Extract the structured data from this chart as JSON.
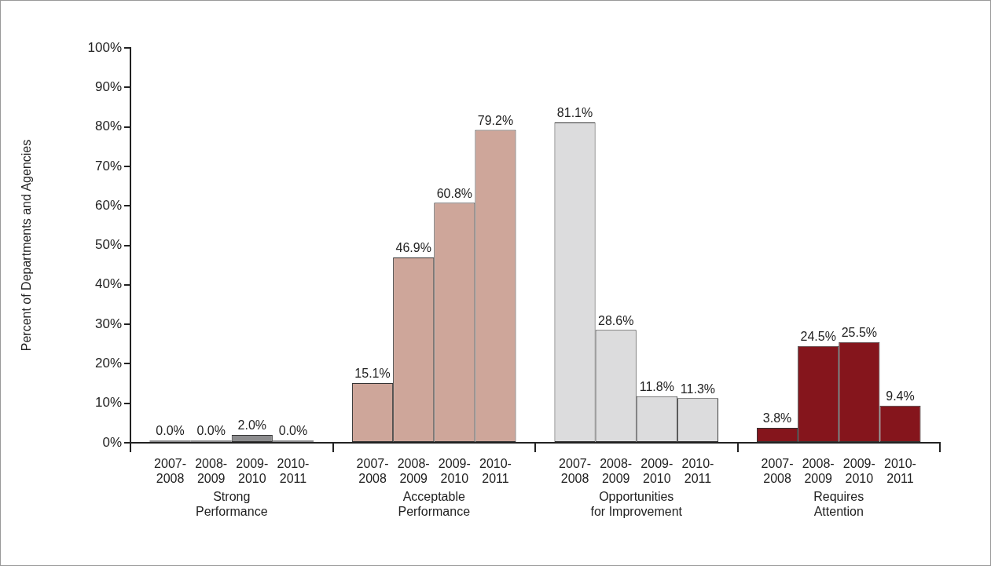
{
  "chart_data": {
    "type": "bar",
    "ylabel": "Percent of Departments and Agencies",
    "categories": [
      "Strong Performance",
      "Acceptable Performance",
      "Opportunities for Improvement",
      "Requires Attention"
    ],
    "series": [
      {
        "name": "2007-2008",
        "colors": [
          "#8c8c8e",
          "#cea69a",
          "#dcdcdd",
          "#85151c"
        ],
        "values": [
          0.0,
          15.1,
          81.1,
          3.8
        ],
        "value_labels": [
          "0.0%",
          "15.1%",
          "81.1%",
          "3.8%"
        ]
      },
      {
        "name": "2008-2009",
        "colors": [
          "#8c8c8e",
          "#cea69a",
          "#dcdcdd",
          "#85151c"
        ],
        "values": [
          0.0,
          46.9,
          28.6,
          24.5
        ],
        "value_labels": [
          "0.0%",
          "46.9%",
          "28.6%",
          "24.5%"
        ]
      },
      {
        "name": "2009-2010",
        "colors": [
          "#8c8c8e",
          "#cea69a",
          "#dcdcdd",
          "#85151c"
        ],
        "values": [
          2.0,
          60.8,
          11.8,
          25.5
        ],
        "value_labels": [
          "2.0%",
          "60.8%",
          "11.8%",
          "25.5%"
        ]
      },
      {
        "name": "2010-2011",
        "colors": [
          "#8c8c8e",
          "#cea69a",
          "#dcdcdd",
          "#85151c"
        ],
        "values": [
          0.0,
          79.2,
          11.3,
          9.4
        ],
        "value_labels": [
          "0.0%",
          "79.2%",
          "11.3%",
          "9.4%"
        ]
      }
    ],
    "ylim": [
      0,
      100
    ],
    "yticks": [
      {
        "value": 0,
        "label": "0%"
      },
      {
        "value": 10,
        "label": "10%"
      },
      {
        "value": 20,
        "label": "20%"
      },
      {
        "value": 30,
        "label": "30%"
      },
      {
        "value": 40,
        "label": "40%"
      },
      {
        "value": 50,
        "label": "50%"
      },
      {
        "value": 60,
        "label": "60%"
      },
      {
        "value": 70,
        "label": "70%"
      },
      {
        "value": 80,
        "label": "80%"
      },
      {
        "value": 90,
        "label": "90%"
      },
      {
        "value": 100,
        "label": "100%"
      }
    ],
    "grid": false,
    "legend": false
  }
}
